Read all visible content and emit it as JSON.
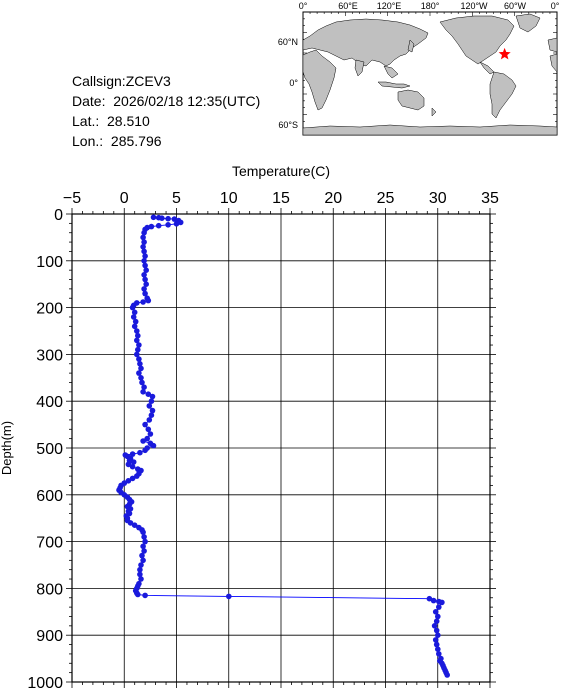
{
  "info": {
    "callsign": "Callsign:ZCEV3",
    "date": "Date:  2026/02/18 12:35(UTC)",
    "lat": "Lat.:  28.510",
    "lon": "Lon.:  285.796"
  },
  "map": {
    "lon_labels": [
      "0°",
      "60°E",
      "120°E",
      "180°",
      "120°W",
      "60°W",
      "0°"
    ],
    "lat_labels": [
      "60°N",
      "0°",
      "60°S"
    ],
    "marker": {
      "lat": 28.51,
      "lon": 285.796,
      "color": "#ff0000"
    },
    "colors": {
      "land": "#c0c0c0",
      "ocean": "#ffffff"
    }
  },
  "chart_data": {
    "type": "scatter",
    "title": "",
    "xlabel": "Temperature(C)",
    "ylabel": "Depth(m)",
    "xlim": [
      -5,
      35
    ],
    "ylim": [
      1000,
      0
    ],
    "xticks": [
      -5,
      0,
      5,
      10,
      15,
      20,
      25,
      30,
      35
    ],
    "yticks": [
      0,
      100,
      200,
      300,
      400,
      500,
      600,
      700,
      800,
      900,
      1000
    ],
    "x_axis_position": "top",
    "grid": true,
    "line_color": "#0000ff",
    "marker_color": "#1a1adc",
    "series": [
      {
        "values": [
          [
            2.8,
            7
          ],
          [
            3.3,
            8
          ],
          [
            3.6,
            9
          ],
          [
            4.2,
            10
          ],
          [
            4.8,
            11
          ],
          [
            5.2,
            14
          ],
          [
            5.4,
            18
          ],
          [
            5.0,
            21
          ],
          [
            4.2,
            23
          ],
          [
            3.3,
            25
          ],
          [
            2.6,
            27
          ],
          [
            2.2,
            29
          ],
          [
            2.0,
            33
          ],
          [
            1.9,
            40
          ],
          [
            1.8,
            50
          ],
          [
            1.9,
            60
          ],
          [
            1.8,
            70
          ],
          [
            1.9,
            80
          ],
          [
            2.0,
            90
          ],
          [
            1.9,
            100
          ],
          [
            2.0,
            110
          ],
          [
            2.1,
            120
          ],
          [
            1.9,
            130
          ],
          [
            2.0,
            140
          ],
          [
            2.1,
            150
          ],
          [
            1.9,
            160
          ],
          [
            2.0,
            170
          ],
          [
            2.2,
            180
          ],
          [
            2.3,
            185
          ],
          [
            1.8,
            188
          ],
          [
            1.2,
            190
          ],
          [
            0.9,
            195
          ],
          [
            0.8,
            200
          ],
          [
            1.0,
            210
          ],
          [
            0.9,
            220
          ],
          [
            1.1,
            230
          ],
          [
            1.0,
            240
          ],
          [
            1.2,
            250
          ],
          [
            1.3,
            260
          ],
          [
            1.2,
            270
          ],
          [
            1.4,
            280
          ],
          [
            1.3,
            290
          ],
          [
            1.2,
            300
          ],
          [
            1.4,
            310
          ],
          [
            1.5,
            320
          ],
          [
            1.6,
            330
          ],
          [
            1.4,
            340
          ],
          [
            1.6,
            350
          ],
          [
            1.7,
            360
          ],
          [
            1.9,
            370
          ],
          [
            1.8,
            380
          ],
          [
            2.3,
            385
          ],
          [
            2.7,
            390
          ],
          [
            2.6,
            400
          ],
          [
            2.4,
            410
          ],
          [
            2.7,
            420
          ],
          [
            2.6,
            430
          ],
          [
            2.4,
            440
          ],
          [
            2.0,
            450
          ],
          [
            2.3,
            460
          ],
          [
            2.5,
            470
          ],
          [
            2.2,
            480
          ],
          [
            1.8,
            485
          ],
          [
            2.5,
            490
          ],
          [
            2.8,
            495
          ],
          [
            2.2,
            500
          ],
          [
            2.0,
            505
          ],
          [
            1.5,
            510
          ],
          [
            0.8,
            513
          ],
          [
            0.1,
            515
          ],
          [
            0.3,
            518
          ],
          [
            0.6,
            522
          ],
          [
            0.5,
            527
          ],
          [
            0.9,
            530
          ],
          [
            0.4,
            535
          ],
          [
            0.8,
            540
          ],
          [
            1.3,
            545
          ],
          [
            1.6,
            548
          ],
          [
            1.4,
            555
          ],
          [
            1.2,
            560
          ],
          [
            0.8,
            565
          ],
          [
            0.4,
            570
          ],
          [
            0.0,
            575
          ],
          [
            -0.3,
            580
          ],
          [
            -0.4,
            585
          ],
          [
            -0.5,
            590
          ],
          [
            -0.3,
            595
          ],
          [
            0.0,
            600
          ],
          [
            0.3,
            605
          ],
          [
            0.5,
            610
          ],
          [
            0.7,
            615
          ],
          [
            0.5,
            620
          ],
          [
            0.3,
            625
          ],
          [
            0.6,
            630
          ],
          [
            0.4,
            635
          ],
          [
            0.5,
            640
          ],
          [
            0.2,
            645
          ],
          [
            0.3,
            650
          ],
          [
            0.3,
            655
          ],
          [
            0.6,
            660
          ],
          [
            1.0,
            665
          ],
          [
            1.4,
            670
          ],
          [
            1.7,
            675
          ],
          [
            1.8,
            680
          ],
          [
            1.9,
            690
          ],
          [
            2.0,
            700
          ],
          [
            1.8,
            710
          ],
          [
            1.9,
            720
          ],
          [
            1.7,
            730
          ],
          [
            1.8,
            740
          ],
          [
            1.6,
            750
          ],
          [
            1.5,
            760
          ],
          [
            1.5,
            770
          ],
          [
            1.6,
            780
          ],
          [
            1.4,
            790
          ],
          [
            1.3,
            795
          ],
          [
            1.2,
            800
          ],
          [
            1.1,
            805
          ],
          [
            1.2,
            810
          ],
          [
            1.3,
            813
          ],
          [
            2.0,
            815
          ],
          [
            10.0,
            817
          ],
          [
            29.2,
            822
          ],
          [
            29.6,
            826
          ],
          [
            30.1,
            828
          ],
          [
            30.4,
            830
          ],
          [
            30.1,
            840
          ],
          [
            29.8,
            850
          ],
          [
            30.0,
            860
          ],
          [
            29.9,
            870
          ],
          [
            29.7,
            880
          ],
          [
            29.9,
            890
          ],
          [
            30.0,
            900
          ],
          [
            29.8,
            910
          ],
          [
            29.9,
            920
          ],
          [
            30.0,
            930
          ],
          [
            30.1,
            940
          ],
          [
            30.3,
            950
          ],
          [
            30.2,
            955
          ],
          [
            30.4,
            960
          ],
          [
            30.5,
            965
          ],
          [
            30.6,
            970
          ],
          [
            30.7,
            975
          ],
          [
            30.8,
            980
          ],
          [
            30.9,
            985
          ]
        ]
      }
    ]
  }
}
